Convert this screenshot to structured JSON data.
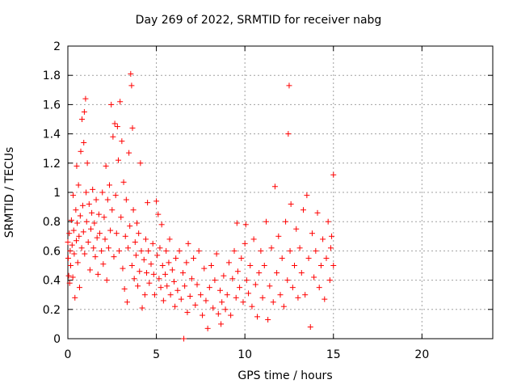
{
  "chart_data": {
    "type": "scatter",
    "title": "Day 269 of 2022, SRMTID for receiver nabg",
    "xlabel": "GPS time / hours",
    "ylabel": "SRMTID / TECUs",
    "xlim": [
      0,
      24
    ],
    "ylim": [
      0,
      2
    ],
    "xticks": [
      "0",
      "5",
      "10",
      "15",
      "20"
    ],
    "yticks": [
      "0",
      "0.2",
      "0.4",
      "0.6",
      "0.8",
      "1",
      "1.2",
      "1.4",
      "1.6",
      "1.8",
      "2"
    ],
    "grid": true,
    "marker": "+",
    "series": [
      {
        "name": "SRMTID",
        "color": "#ff0000",
        "points": [
          [
            0.0,
            0.66
          ],
          [
            0.02,
            0.55
          ],
          [
            0.05,
            0.43
          ],
          [
            0.08,
            0.72
          ],
          [
            0.1,
            0.38
          ],
          [
            0.13,
            0.6
          ],
          [
            0.16,
            0.5
          ],
          [
            0.2,
            0.81
          ],
          [
            0.24,
            0.64
          ],
          [
            0.28,
            0.42
          ],
          [
            0.3,
            0.98
          ],
          [
            0.33,
            0.74
          ],
          [
            0.36,
            0.58
          ],
          [
            0.4,
            0.28
          ],
          [
            0.45,
            0.88
          ],
          [
            0.48,
            0.67
          ],
          [
            0.5,
            1.18
          ],
          [
            0.53,
            0.79
          ],
          [
            0.56,
            0.52
          ],
          [
            0.6,
            1.05
          ],
          [
            0.63,
            0.7
          ],
          [
            0.66,
            0.35
          ],
          [
            0.7,
            0.84
          ],
          [
            0.73,
            1.28
          ],
          [
            0.78,
            0.62
          ],
          [
            0.8,
            1.5
          ],
          [
            0.84,
            0.91
          ],
          [
            0.88,
            0.73
          ],
          [
            0.9,
            1.34
          ],
          [
            0.93,
            1.55
          ],
          [
            0.95,
            0.58
          ],
          [
            1.0,
            1.64
          ],
          [
            1.03,
            1.0
          ],
          [
            1.06,
            0.8
          ],
          [
            1.1,
            1.2
          ],
          [
            1.15,
            0.66
          ],
          [
            1.2,
            0.92
          ],
          [
            1.25,
            0.47
          ],
          [
            1.3,
            0.75
          ],
          [
            1.35,
            0.86
          ],
          [
            1.4,
            1.02
          ],
          [
            1.45,
            0.62
          ],
          [
            1.5,
            0.79
          ],
          [
            1.55,
            0.56
          ],
          [
            1.6,
            0.95
          ],
          [
            1.65,
            0.69
          ],
          [
            1.7,
            0.44
          ],
          [
            1.75,
            0.85
          ],
          [
            1.8,
            0.72
          ],
          [
            1.9,
            0.6
          ],
          [
            1.95,
            1.0
          ],
          [
            2.0,
            0.51
          ],
          [
            2.05,
            0.83
          ],
          [
            2.1,
            0.68
          ],
          [
            2.15,
            1.18
          ],
          [
            2.2,
            0.4
          ],
          [
            2.25,
            0.95
          ],
          [
            2.3,
            0.62
          ],
          [
            2.35,
            1.05
          ],
          [
            2.4,
            0.74
          ],
          [
            2.45,
            1.6
          ],
          [
            2.5,
            0.88
          ],
          [
            2.55,
            1.38
          ],
          [
            2.6,
            0.56
          ],
          [
            2.65,
            1.47
          ],
          [
            2.7,
            0.98
          ],
          [
            2.75,
            0.72
          ],
          [
            2.8,
            1.45
          ],
          [
            2.85,
            1.22
          ],
          [
            2.9,
            0.6
          ],
          [
            2.95,
            1.62
          ],
          [
            3.0,
            0.83
          ],
          [
            3.05,
            1.35
          ],
          [
            3.1,
            0.48
          ],
          [
            3.15,
            1.07
          ],
          [
            3.2,
            0.34
          ],
          [
            3.25,
            0.7
          ],
          [
            3.3,
            0.95
          ],
          [
            3.35,
            0.25
          ],
          [
            3.4,
            0.62
          ],
          [
            3.45,
            1.27
          ],
          [
            3.5,
            0.77
          ],
          [
            3.55,
            1.81
          ],
          [
            3.6,
            1.73
          ],
          [
            3.62,
            0.5
          ],
          [
            3.65,
            1.44
          ],
          [
            3.7,
            0.88
          ],
          [
            3.75,
            0.41
          ],
          [
            3.8,
            0.66
          ],
          [
            3.85,
            0.57
          ],
          [
            3.9,
            0.79
          ],
          [
            3.95,
            0.36
          ],
          [
            4.0,
            0.72
          ],
          [
            4.05,
            0.46
          ],
          [
            4.1,
            1.2
          ],
          [
            4.15,
            0.6
          ],
          [
            4.2,
            0.21
          ],
          [
            4.3,
            0.54
          ],
          [
            4.35,
            0.3
          ],
          [
            4.4,
            0.68
          ],
          [
            4.45,
            0.45
          ],
          [
            4.5,
            0.93
          ],
          [
            4.55,
            0.6
          ],
          [
            4.6,
            0.38
          ],
          [
            4.7,
            0.51
          ],
          [
            4.8,
            0.65
          ],
          [
            4.85,
            0.44
          ],
          [
            4.9,
            0.3
          ],
          [
            5.0,
            0.94
          ],
          [
            5.05,
            0.57
          ],
          [
            5.1,
            0.85
          ],
          [
            5.15,
            0.41
          ],
          [
            5.2,
            0.62
          ],
          [
            5.25,
            0.35
          ],
          [
            5.3,
            0.78
          ],
          [
            5.35,
            0.5
          ],
          [
            5.4,
            0.26
          ],
          [
            5.5,
            0.44
          ],
          [
            5.55,
            0.6
          ],
          [
            5.6,
            0.36
          ],
          [
            5.7,
            0.52
          ],
          [
            5.75,
            0.68
          ],
          [
            5.8,
            0.3
          ],
          [
            5.9,
            0.47
          ],
          [
            6.0,
            0.39
          ],
          [
            6.05,
            0.22
          ],
          [
            6.1,
            0.55
          ],
          [
            6.2,
            0.33
          ],
          [
            6.3,
            0.6
          ],
          [
            6.4,
            0.27
          ],
          [
            6.5,
            0.45
          ],
          [
            6.55,
            0.0
          ],
          [
            6.6,
            0.36
          ],
          [
            6.7,
            0.52
          ],
          [
            6.75,
            0.18
          ],
          [
            6.8,
            0.65
          ],
          [
            6.9,
            0.29
          ],
          [
            7.0,
            0.41
          ],
          [
            7.1,
            0.55
          ],
          [
            7.2,
            0.23
          ],
          [
            7.3,
            0.37
          ],
          [
            7.4,
            0.6
          ],
          [
            7.5,
            0.3
          ],
          [
            7.6,
            0.16
          ],
          [
            7.7,
            0.48
          ],
          [
            7.8,
            0.26
          ],
          [
            7.9,
            0.07
          ],
          [
            8.0,
            0.35
          ],
          [
            8.1,
            0.5
          ],
          [
            8.2,
            0.21
          ],
          [
            8.3,
            0.4
          ],
          [
            8.4,
            0.58
          ],
          [
            8.5,
            0.17
          ],
          [
            8.6,
            0.33
          ],
          [
            8.65,
            0.1
          ],
          [
            8.7,
            0.25
          ],
          [
            8.8,
            0.43
          ],
          [
            8.9,
            0.2
          ],
          [
            9.0,
            0.3
          ],
          [
            9.1,
            0.52
          ],
          [
            9.2,
            0.16
          ],
          [
            9.3,
            0.41
          ],
          [
            9.4,
            0.6
          ],
          [
            9.5,
            0.28
          ],
          [
            9.55,
            0.79
          ],
          [
            9.6,
            0.46
          ],
          [
            9.7,
            0.35
          ],
          [
            9.8,
            0.55
          ],
          [
            9.9,
            0.25
          ],
          [
            10.0,
            0.65
          ],
          [
            10.05,
            0.78
          ],
          [
            10.1,
            0.4
          ],
          [
            10.2,
            0.31
          ],
          [
            10.3,
            0.5
          ],
          [
            10.4,
            0.22
          ],
          [
            10.5,
            0.68
          ],
          [
            10.6,
            0.37
          ],
          [
            10.7,
            0.15
          ],
          [
            10.8,
            0.45
          ],
          [
            10.9,
            0.6
          ],
          [
            11.0,
            0.28
          ],
          [
            11.1,
            0.5
          ],
          [
            11.2,
            0.8
          ],
          [
            11.3,
            0.13
          ],
          [
            11.4,
            0.36
          ],
          [
            11.5,
            0.62
          ],
          [
            11.6,
            0.25
          ],
          [
            11.7,
            1.04
          ],
          [
            11.8,
            0.45
          ],
          [
            11.9,
            0.7
          ],
          [
            12.0,
            0.3
          ],
          [
            12.1,
            0.55
          ],
          [
            12.2,
            0.22
          ],
          [
            12.3,
            0.8
          ],
          [
            12.4,
            0.4
          ],
          [
            12.45,
            1.4
          ],
          [
            12.5,
            1.73
          ],
          [
            12.55,
            0.6
          ],
          [
            12.6,
            0.92
          ],
          [
            12.7,
            0.35
          ],
          [
            12.8,
            0.5
          ],
          [
            12.9,
            0.75
          ],
          [
            13.0,
            0.28
          ],
          [
            13.1,
            0.62
          ],
          [
            13.2,
            0.45
          ],
          [
            13.3,
            0.88
          ],
          [
            13.4,
            0.3
          ],
          [
            13.5,
            0.98
          ],
          [
            13.6,
            0.55
          ],
          [
            13.7,
            0.08
          ],
          [
            13.8,
            0.72
          ],
          [
            13.9,
            0.42
          ],
          [
            14.0,
            0.6
          ],
          [
            14.1,
            0.86
          ],
          [
            14.2,
            0.35
          ],
          [
            14.3,
            0.5
          ],
          [
            14.4,
            0.68
          ],
          [
            14.5,
            0.27
          ],
          [
            14.6,
            0.55
          ],
          [
            14.7,
            0.8
          ],
          [
            14.8,
            0.4
          ],
          [
            14.85,
            0.62
          ],
          [
            14.9,
            0.7
          ],
          [
            15.0,
            1.12
          ],
          [
            15.0,
            0.5
          ]
        ]
      }
    ]
  }
}
